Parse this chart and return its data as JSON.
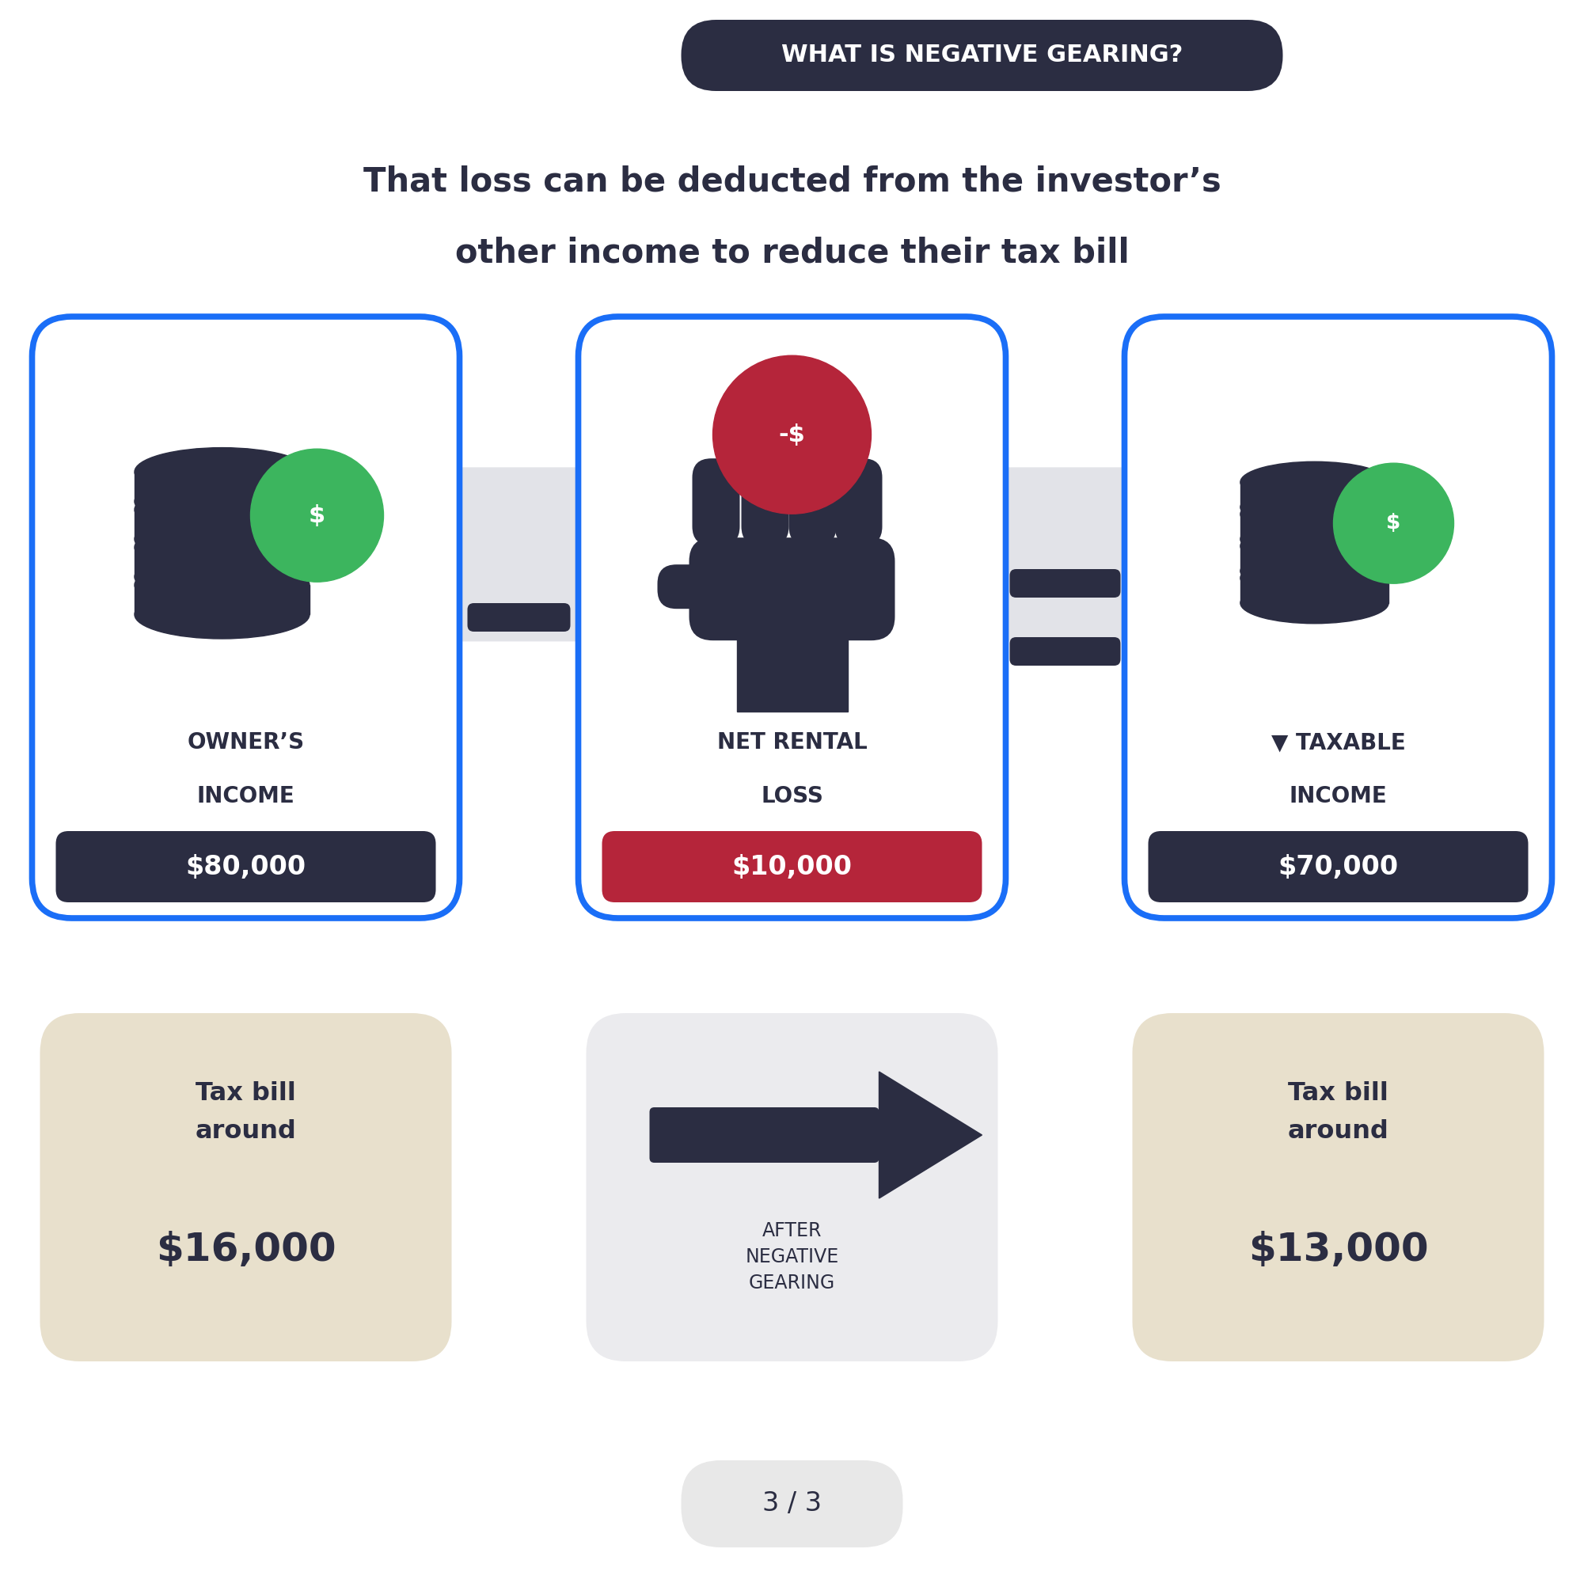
{
  "bg_color": "#ffffff",
  "title_bg": "#2b2d42",
  "title_text": "WHAT IS NEGATIVE GEARING?",
  "title_text_color": "#ffffff",
  "subtitle_line1": "That loss can be deducted from the investor’s",
  "subtitle_line2": "other income to reduce their tax bill",
  "subtitle_color": "#2b2d42",
  "dark_navy": "#2b2d42",
  "blue_border": "#1a6ef7",
  "green_circle": "#3cb55e",
  "red_circle": "#b5253a",
  "red_banner": "#b5253a",
  "light_gray_bg": "#e2e3e8",
  "beige_bg": "#e8e0cc",
  "arrow_bg": "#ebebee",
  "box1_label1": "OWNER’S",
  "box1_label2": "INCOME",
  "box1_value": "$80,000",
  "box1_value_bg": "#2b2d42",
  "box2_label1": "NET RENTAL",
  "box2_label2": "LOSS",
  "box2_value": "$10,000",
  "box2_value_bg": "#b5253a",
  "box3_label1": "▼ TAXABLE",
  "box3_label2": "INCOME",
  "box3_value": "$70,000",
  "box3_value_bg": "#2b2d42",
  "tax_before_label1": "Tax bill",
  "tax_before_label2": "around",
  "tax_before_value": "$16,000",
  "tax_after_label1": "Tax bill",
  "tax_after_label2": "around",
  "tax_after_value": "$13,000",
  "arrow_label": "AFTER\nNEGATIVE\nGEARING",
  "page_indicator": "3 / 3",
  "minus_sign": "—",
  "equals_sign": "="
}
